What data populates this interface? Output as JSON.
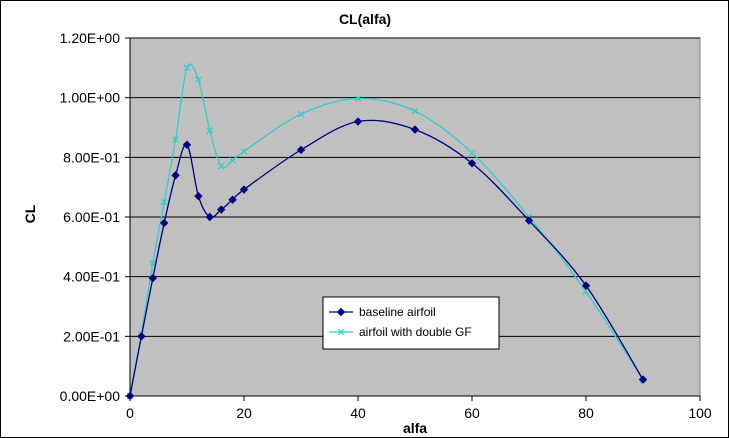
{
  "chart_data": {
    "type": "line",
    "title": "CL(alfa)",
    "xlabel": "alfa",
    "ylabel": "CL",
    "xlim": [
      0,
      100
    ],
    "ylim": [
      0,
      1.2
    ],
    "x_ticks": [
      0,
      20,
      40,
      60,
      80,
      100
    ],
    "x_tick_labels": [
      "0",
      "20",
      "40",
      "60",
      "80",
      "100"
    ],
    "y_ticks": [
      0,
      0.2,
      0.4,
      0.6,
      0.8,
      1.0,
      1.2
    ],
    "y_tick_labels": [
      "0.00E+00",
      "2.00E-01",
      "4.00E-01",
      "6.00E-01",
      "8.00E-01",
      "1.00E+00",
      "1.20E+00"
    ],
    "grid": "horizontal",
    "plot_background": "#c0c0c0",
    "legend_position": "center-bottom",
    "series": [
      {
        "name": "baseline airfoil",
        "color": "#000080",
        "marker": "diamond",
        "points": [
          [
            0,
            0.0
          ],
          [
            2,
            0.2
          ],
          [
            4,
            0.395
          ],
          [
            6,
            0.58
          ],
          [
            8,
            0.74
          ],
          [
            10,
            0.842
          ],
          [
            12,
            0.67
          ],
          [
            14,
            0.6
          ],
          [
            16,
            0.625
          ],
          [
            18,
            0.658
          ],
          [
            20,
            0.692
          ],
          [
            30,
            0.825
          ],
          [
            40,
            0.92
          ],
          [
            50,
            0.893
          ],
          [
            60,
            0.78
          ],
          [
            70,
            0.588
          ],
          [
            80,
            0.37
          ],
          [
            90,
            0.055
          ]
        ]
      },
      {
        "name": "airfoil with double GF",
        "color": "#33cccc",
        "marker": "x",
        "points": [
          [
            0,
            0.0
          ],
          [
            2,
            0.21
          ],
          [
            4,
            0.445
          ],
          [
            6,
            0.65
          ],
          [
            8,
            0.86
          ],
          [
            10,
            1.1
          ],
          [
            12,
            1.06
          ],
          [
            14,
            0.89
          ],
          [
            16,
            0.77
          ],
          [
            18,
            0.79
          ],
          [
            20,
            0.82
          ],
          [
            30,
            0.945
          ],
          [
            40,
            0.997
          ],
          [
            50,
            0.955
          ],
          [
            60,
            0.815
          ],
          [
            70,
            0.6
          ],
          [
            80,
            0.35
          ],
          [
            90,
            0.055
          ]
        ]
      }
    ]
  }
}
